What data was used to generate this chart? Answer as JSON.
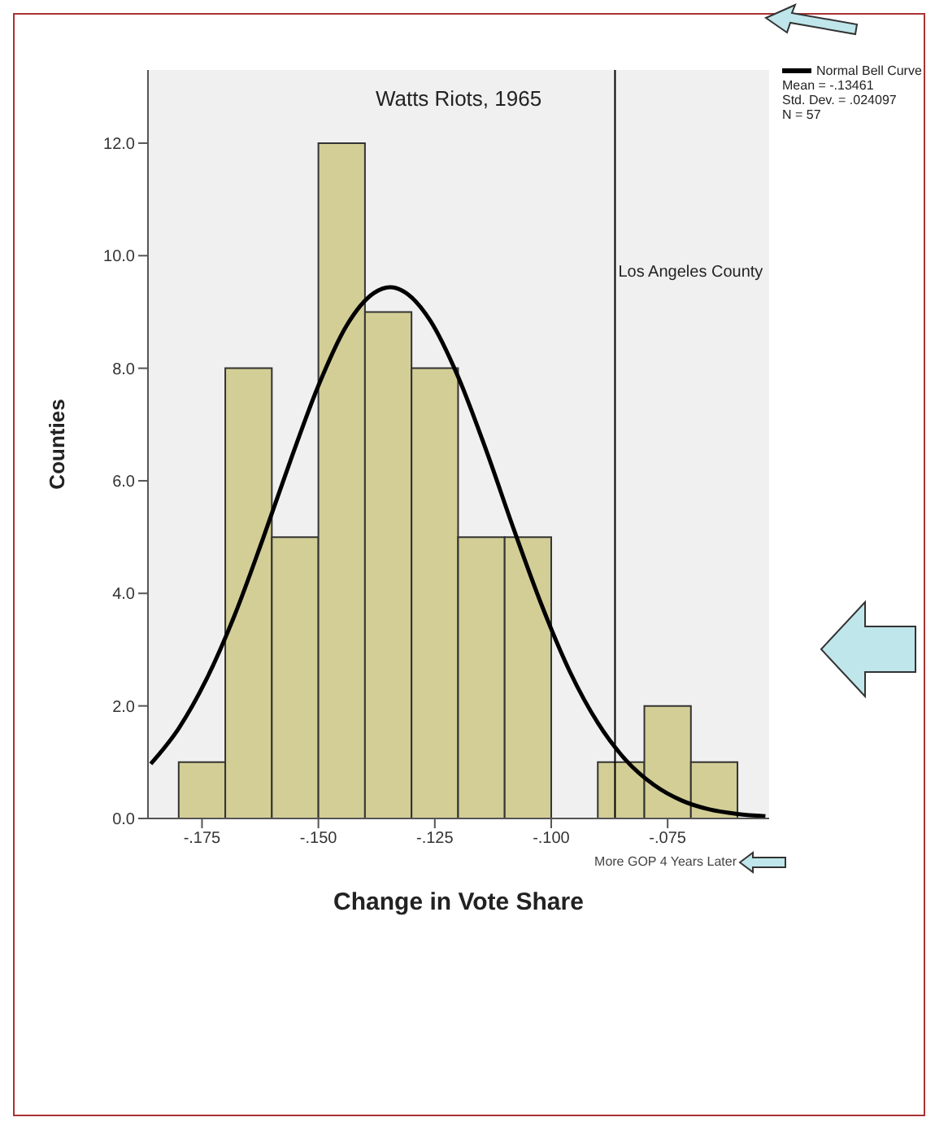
{
  "chart_data": {
    "type": "histogram",
    "title": "Watts Riots, 1965",
    "xlabel": "Change in Vote Share",
    "ylabel": "Counties",
    "bins": [
      -0.18,
      -0.17,
      -0.16,
      -0.15,
      -0.14,
      -0.13,
      -0.12,
      -0.11,
      -0.1,
      -0.09,
      -0.08,
      -0.07,
      -0.06
    ],
    "series": [
      {
        "color": "#d3ce96",
        "values": [
          1,
          8,
          5,
          12,
          9,
          8,
          5,
          5,
          0,
          1,
          2,
          1
        ]
      },
      {
        "type": "line",
        "name": "Normal Bell Curve",
        "color": "#000000",
        "x": [
          -0.186,
          -0.18,
          -0.174,
          -0.168,
          -0.162,
          -0.156,
          -0.15,
          -0.144,
          -0.138,
          -0.13461,
          -0.132,
          -0.126,
          -0.12,
          -0.114,
          -0.108,
          -0.102,
          -0.096,
          -0.09,
          -0.084,
          -0.078,
          -0.072,
          -0.066,
          -0.06,
          -0.054
        ],
        "values": [
          0.97,
          1.6,
          2.48,
          3.61,
          4.95,
          6.36,
          7.69,
          8.75,
          9.34,
          9.44,
          9.38,
          8.85,
          7.85,
          6.55,
          5.13,
          3.78,
          2.61,
          1.7,
          1.04,
          0.6,
          0.32,
          0.16,
          0.08,
          0.04
        ]
      }
    ],
    "xlim": [
      -0.1866,
      -0.0532
    ],
    "ylim": [
      0,
      13.3
    ],
    "xticks": [
      {
        "value": -0.175,
        "label": "-.175"
      },
      {
        "value": -0.15,
        "label": "-.150"
      },
      {
        "value": -0.125,
        "label": "-.125"
      },
      {
        "value": -0.1,
        "label": "-.100"
      },
      {
        "value": -0.075,
        "label": "-.075"
      }
    ],
    "yticks": [
      {
        "value": 0,
        "label": "0.0"
      },
      {
        "value": 2,
        "label": "2.0"
      },
      {
        "value": 4,
        "label": "4.0"
      },
      {
        "value": 6,
        "label": "6.0"
      },
      {
        "value": 8,
        "label": "8.0"
      },
      {
        "value": 10,
        "label": "10.0"
      },
      {
        "value": 12,
        "label": "12.0"
      }
    ],
    "ref_lines": [
      {
        "axis": "x",
        "value": -0.0863,
        "label": "Los Angeles County",
        "color": "#000000"
      }
    ],
    "annotations": [
      "Mean = -.13461",
      "Std. Dev. = .024097",
      "N = 57",
      "More GOP 4 Years Later"
    ],
    "legend": "top right",
    "grid": false,
    "marker": "none"
  }
}
